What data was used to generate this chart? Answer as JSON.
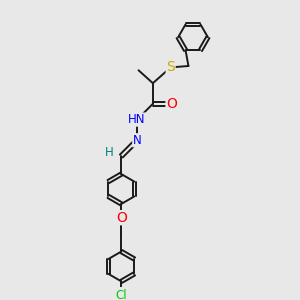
{
  "background_color": "#e8e8e8",
  "bond_color": "#1a1a1a",
  "atom_colors": {
    "S": "#ccaa00",
    "O": "#ff0000",
    "N": "#0000ff",
    "Cl": "#00cc00",
    "H": "#008080",
    "C": "#1a1a1a"
  },
  "figsize": [
    3.0,
    3.0
  ],
  "dpi": 100,
  "lw": 1.4,
  "fs": 8.5,
  "r_hex": 0.52
}
